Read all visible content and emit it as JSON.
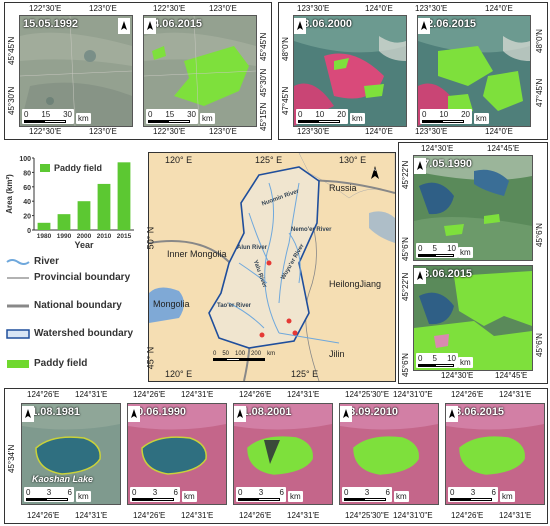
{
  "top_left_panel": {
    "img1": {
      "date": "15.05.1992"
    },
    "img2": {
      "date": "14.06.2015"
    },
    "top_lon": [
      "122°30'E",
      "123°0'E",
      "122°30'E",
      "123°0'E"
    ],
    "bottom_lon": [
      "122°30'E",
      "123°0'E",
      "122°30'E",
      "123°0'E"
    ],
    "left_lat": [
      "45°45'N",
      "45°30'N"
    ],
    "right_lat": [
      "45°45'N",
      "45°30'N",
      "45°15'N"
    ],
    "scale": {
      "ticks": [
        "0",
        "15",
        "30"
      ],
      "unit": "km"
    }
  },
  "top_right_panel": {
    "img1": {
      "date": "28.06.2000"
    },
    "img2": {
      "date": "12.06.2015"
    },
    "top_lon": [
      "123°30'E",
      "124°0'E",
      "123°30'E",
      "124°0'E"
    ],
    "bottom_lon": [
      "123°30'E",
      "124°0'E",
      "123°30'E",
      "124°0'E"
    ],
    "left_lat": [
      "48°0'N",
      "47°45'N"
    ],
    "right_lat": [
      "48°0'N",
      "47°45'N"
    ],
    "scale": {
      "ticks": [
        "0",
        "10",
        "20"
      ],
      "unit": "km"
    }
  },
  "right_panel": {
    "img1": {
      "date": "17.05.1990"
    },
    "img2": {
      "date": "23.06.2015"
    },
    "top_lon": [
      "124°30'E",
      "124°45'E"
    ],
    "bottom_lon": [
      "124°30'E",
      "124°45'E"
    ],
    "left_lat": [
      "45°22'N",
      "45°6'N",
      "45°22'N",
      "45°6'N"
    ],
    "right_lat": [
      "45°6'N",
      "45°6'N"
    ],
    "scale1": {
      "ticks": [
        "0",
        "5",
        "10"
      ],
      "unit": "km"
    },
    "scale2": {
      "ticks": [
        "0",
        "5",
        "10"
      ],
      "unit": "km"
    }
  },
  "bottom_panel": {
    "images": [
      {
        "date": "21.08.1981"
      },
      {
        "date": "20.06.1990"
      },
      {
        "date": "11.08.2001"
      },
      {
        "date": "13.09.2010"
      },
      {
        "date": "23.06.2015"
      }
    ],
    "top_lon": [
      "124°26'E",
      "124°31'E",
      "124°26'E",
      "124°31'E",
      "124°26'E",
      "124°31'E",
      "124°25'30\"E",
      "124°31'0\"E",
      "124°26'E",
      "124°31'E"
    ],
    "bottom_lon": [
      "124°26'E",
      "124°31'E",
      "124°26'E",
      "124°31'E",
      "124°26'E",
      "124°31'E",
      "124°25'30\"E",
      "124°31'0\"E",
      "124°26'E",
      "124°31'E"
    ],
    "left_lat": "45°34'N",
    "lake_name": "Kaoshan Lake",
    "scale": {
      "ticks": [
        "0",
        "3",
        "6"
      ],
      "unit": "km"
    }
  },
  "chart_data": {
    "type": "bar",
    "categories": [
      "1980",
      "1990",
      "2000",
      "2010",
      "2015"
    ],
    "values": [
      10,
      22,
      40,
      64,
      94
    ],
    "ylabel": "Area (km²)",
    "xlabel": "Year",
    "ylim": [
      0,
      100
    ],
    "yticks": [
      "0",
      "20",
      "40",
      "60",
      "80",
      "100"
    ],
    "series_name": "Paddy field",
    "color": "#5cc832"
  },
  "center_map": {
    "top_lon": [
      "120° E",
      "125° E",
      "130° E"
    ],
    "bottom_lon": [
      "120° E",
      "125° E"
    ],
    "left_lat": [
      "50° N",
      "45° N"
    ],
    "regions": [
      "Russia",
      "Inner Mongolia",
      "Mongolia",
      "HeilongJiang",
      "Jilin"
    ],
    "rivers": [
      "Nuomin River",
      "Nemo'er River",
      "Alun River",
      "Yalu River",
      "Wuyu'er River",
      "Tao'er River"
    ],
    "scale": {
      "ticks": [
        "0",
        "50",
        "100",
        "200"
      ],
      "unit": "km"
    },
    "colors": {
      "land": "#f5deb3",
      "water": "#7fa9d6",
      "watershed": "#1f4e9c",
      "river": "#6fa8dc"
    }
  },
  "legend": [
    {
      "label": "River",
      "symbol": "river-line"
    },
    {
      "label": "Provincial boundary",
      "symbol": "thin-gray-line"
    },
    {
      "label": "National boundary",
      "symbol": "thick-gray-line"
    },
    {
      "label": "Watershed boundary",
      "symbol": "blue-outline-box"
    },
    {
      "label": "Paddy field",
      "symbol": "green-box"
    }
  ]
}
